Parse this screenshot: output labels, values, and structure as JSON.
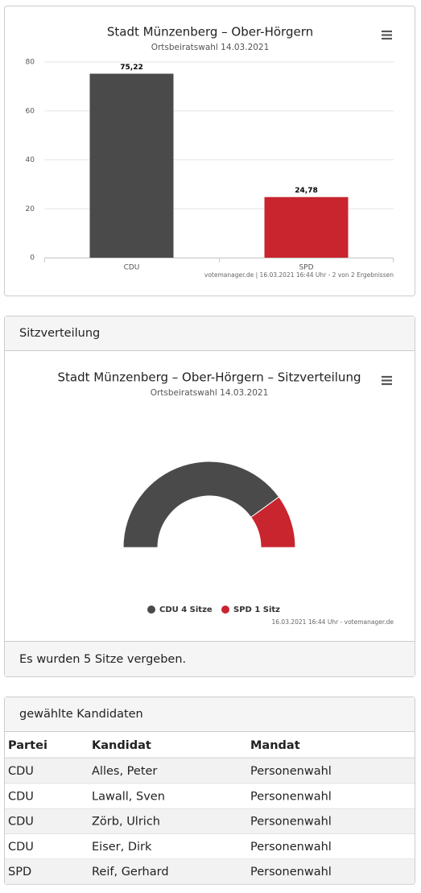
{
  "chart_data": [
    {
      "type": "bar",
      "title": "Stadt Münzenberg – Ober-Hörgern",
      "subtitle": "Ortsbeiratswahl 14.03.2021",
      "categories": [
        "CDU",
        "SPD"
      ],
      "values": [
        75.22,
        24.78
      ],
      "value_labels": [
        "75,22",
        "24,78"
      ],
      "colors": [
        "#4a4a4a",
        "#c8252f"
      ],
      "ylim": [
        0,
        80
      ],
      "yticks": [
        0,
        20,
        40,
        60,
        80
      ],
      "grid": true,
      "credits": "votemanager.de | 16.03.2021 16:44 Uhr - 2 von 2 Ergebnissen"
    },
    {
      "type": "pie",
      "semicircle": true,
      "title": "Stadt Münzenberg – Ober-Hörgern – Sitzverteilung",
      "subtitle": "Ortsbeiratswahl 14.03.2021",
      "categories": [
        "CDU 4 Sitze",
        "SPD 1 Sitz"
      ],
      "values": [
        4,
        1
      ],
      "colors": [
        "#4a4a4a",
        "#c8252f"
      ],
      "credits": "16.03.2021 16:44 Uhr - votemanager.de"
    }
  ],
  "seats_panel": {
    "title": "Sitzverteilung",
    "footer": "Es wurden 5 Sitze vergeben."
  },
  "candidates_panel": {
    "title": "gewählte Kandidaten"
  },
  "table": {
    "header": [
      "Partei",
      "Kandidat",
      "Mandat"
    ],
    "rows": [
      [
        "CDU",
        "Alles, Peter",
        "Personenwahl"
      ],
      [
        "CDU",
        "Lawall, Sven",
        "Personenwahl"
      ],
      [
        "CDU",
        "Zörb, Ulrich",
        "Personenwahl"
      ],
      [
        "CDU",
        "Eiser, Dirk",
        "Personenwahl"
      ],
      [
        "SPD",
        "Reif, Gerhard",
        "Personenwahl"
      ]
    ]
  }
}
